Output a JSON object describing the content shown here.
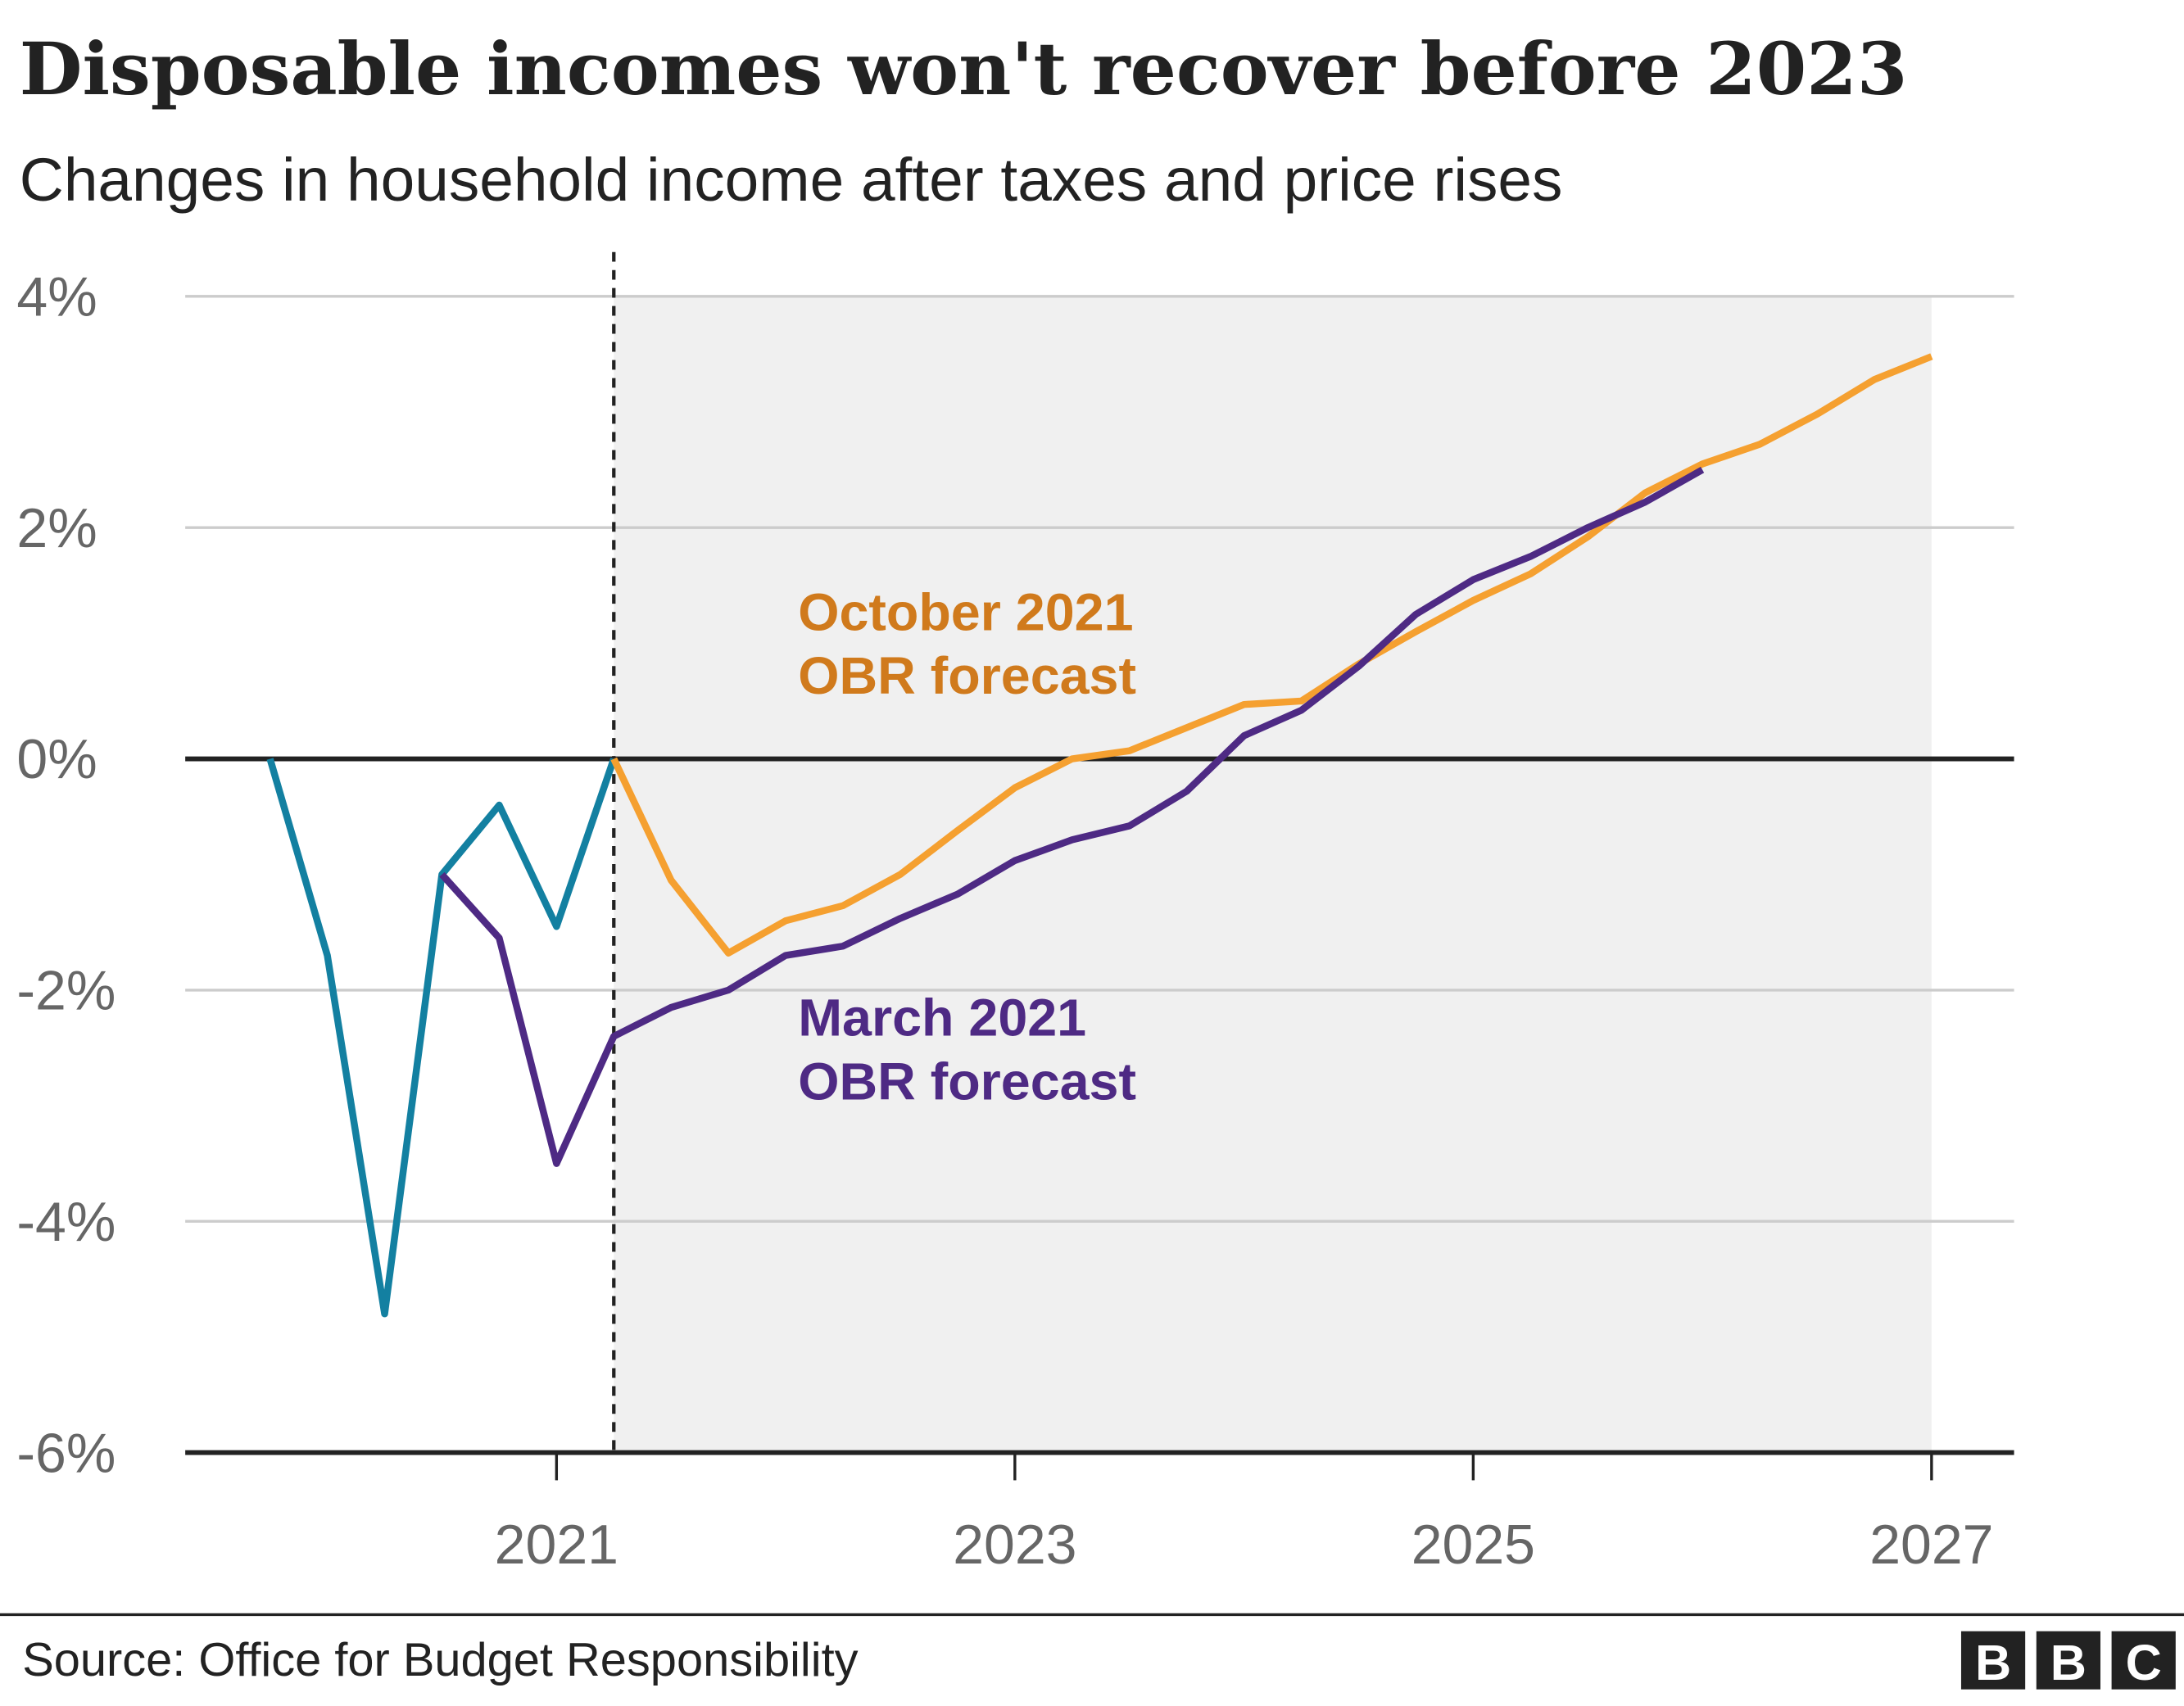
{
  "chart_data": {
    "type": "line",
    "title": "Disposable incomes won't recover before 2023",
    "subtitle": "Changes in household income after taxes and price rises",
    "source": "Source: Office for Budget Responsibility",
    "logo": [
      "B",
      "B",
      "C"
    ],
    "xlim": [
      2019.38,
      2027.36
    ],
    "xticks": [
      2021,
      2023,
      2025,
      2027
    ],
    "ylim": [
      -6,
      4
    ],
    "yticks": [
      {
        "value": 4,
        "label": "4%"
      },
      {
        "value": 2,
        "label": "2%"
      },
      {
        "value": 0,
        "label": "0%"
      },
      {
        "value": -2,
        "label": "-2%"
      },
      {
        "value": -4,
        "label": "-4%"
      },
      {
        "value": -6,
        "label": "-6%"
      }
    ],
    "grid": true,
    "forecast_start": 2021.25,
    "forecast_end": 2027,
    "forecast_shade_color": "#f0f0f0",
    "series": [
      {
        "color": "#1380a1",
        "x": [
          2019.75,
          2020,
          2020.25,
          2020.5,
          2020.75,
          2021,
          2021.25
        ],
        "values": [
          0,
          -1.7,
          -4.8,
          -1.0,
          -0.4,
          -1.45,
          0
        ]
      },
      {
        "color": "#f5a030",
        "x": [
          2021.25,
          2021.5,
          2021.75,
          2022,
          2022.25,
          2022.5,
          2022.75,
          2023,
          2023.25,
          2023.5,
          2023.75,
          2024,
          2024.25,
          2024.5,
          2024.75,
          2025,
          2025.25,
          2025.5,
          2025.75,
          2026,
          2026.25,
          2026.5,
          2026.75,
          2027
        ],
        "values": [
          0,
          -1.05,
          -1.68,
          -1.4,
          -1.27,
          -1.0,
          -0.62,
          -0.25,
          0,
          0.07,
          0.27,
          0.47,
          0.5,
          0.82,
          1.1,
          1.37,
          1.6,
          1.92,
          2.3,
          2.55,
          2.72,
          2.98,
          3.28,
          3.48
        ]
      },
      {
        "color": "#4e2a84",
        "x": [
          2020.5,
          2020.75,
          2021,
          2021.25,
          2021.5,
          2021.75,
          2022,
          2022.25,
          2022.5,
          2022.75,
          2023,
          2023.25,
          2023.5,
          2023.75,
          2024,
          2024.25,
          2024.5,
          2024.75,
          2025,
          2025.25,
          2025.5,
          2025.75,
          2026
        ],
        "values": [
          -1.0,
          -1.55,
          -3.5,
          -2.4,
          -2.15,
          -2.0,
          -1.7,
          -1.62,
          -1.38,
          -1.17,
          -0.88,
          -0.7,
          -0.58,
          -0.28,
          0.2,
          0.42,
          0.8,
          1.25,
          1.55,
          1.75,
          2.0,
          2.22,
          2.5
        ]
      }
    ],
    "annotations": [
      {
        "lines": [
          "October 2021",
          "OBR forecast"
        ],
        "color": "#d07a1c"
      },
      {
        "lines": [
          "March 2021",
          "OBR forecast"
        ],
        "color": "#4e2a84"
      }
    ]
  }
}
